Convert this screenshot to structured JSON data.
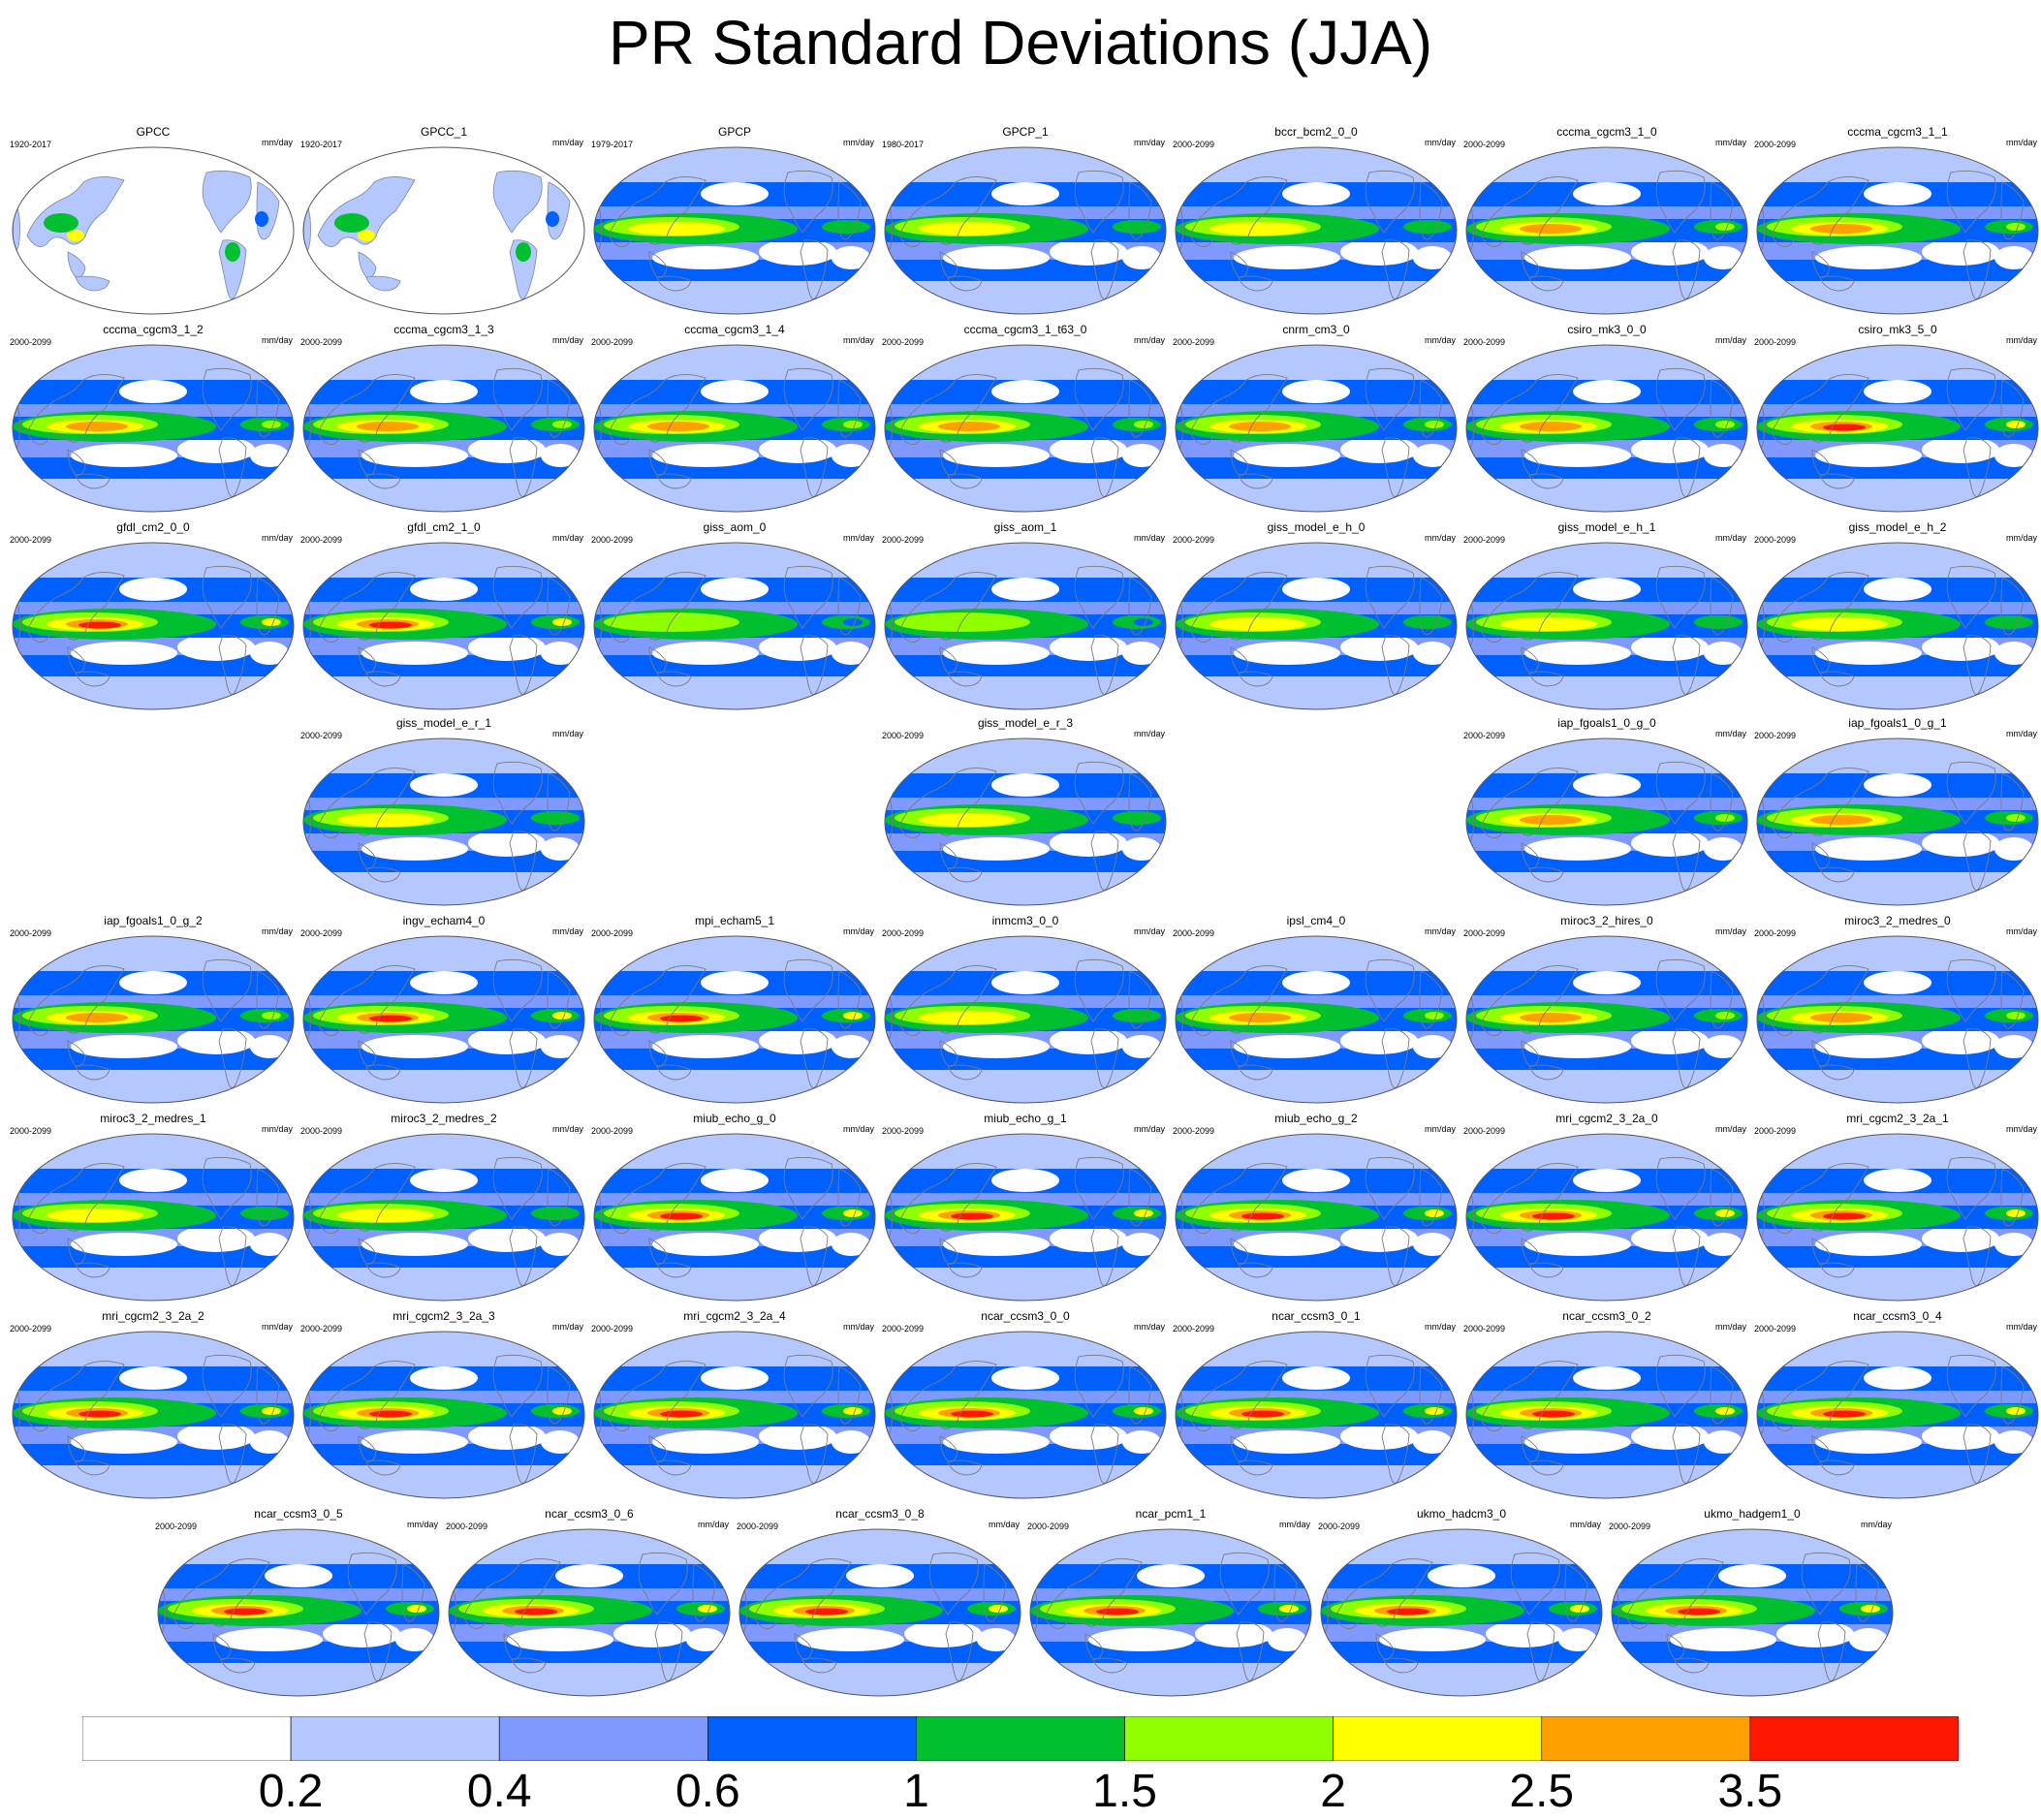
{
  "title": "PR Standard Deviations (JJA)",
  "units": "mm/day",
  "colorbar": {
    "labels": [
      "0.2",
      "0.4",
      "0.6",
      "1",
      "1.5",
      "2",
      "2.5",
      "3.5"
    ],
    "colors": [
      "#ffffff",
      "#b4c8ff",
      "#8099ff",
      "#0060ff",
      "#00c030",
      "#90ff00",
      "#ffff00",
      "#ffa000",
      "#ff1800"
    ]
  },
  "panels": [
    {
      "name": "GPCC",
      "period": "1920-2017",
      "kind": "land"
    },
    {
      "name": "GPCC_1",
      "period": "1920-2017",
      "kind": "land"
    },
    {
      "name": "GPCP",
      "period": "1979-2017",
      "kind": "obs"
    },
    {
      "name": "GPCP_1",
      "period": "1980-2017",
      "kind": "obs"
    },
    {
      "name": "bccr_bcm2_0_0",
      "period": "2000-2099",
      "kind": "model",
      "intensity": 1
    },
    {
      "name": "cccma_cgcm3_1_0",
      "period": "2000-2099",
      "kind": "model",
      "intensity": 2
    },
    {
      "name": "cccma_cgcm3_1_1",
      "period": "2000-2099",
      "kind": "model",
      "intensity": 2
    },
    {
      "name": "cccma_cgcm3_1_2",
      "period": "2000-2099",
      "kind": "model",
      "intensity": 2
    },
    {
      "name": "cccma_cgcm3_1_3",
      "period": "2000-2099",
      "kind": "model",
      "intensity": 2
    },
    {
      "name": "cccma_cgcm3_1_4",
      "period": "2000-2099",
      "kind": "model",
      "intensity": 2
    },
    {
      "name": "cccma_cgcm3_1_t63_0",
      "period": "2000-2099",
      "kind": "model",
      "intensity": 2
    },
    {
      "name": "cnrm_cm3_0",
      "period": "2000-2099",
      "kind": "model",
      "intensity": 2
    },
    {
      "name": "csiro_mk3_0_0",
      "period": "2000-2099",
      "kind": "model",
      "intensity": 2
    },
    {
      "name": "csiro_mk3_5_0",
      "period": "2000-2099",
      "kind": "model",
      "intensity": 3
    },
    {
      "name": "gfdl_cm2_0_0",
      "period": "2000-2099",
      "kind": "model",
      "intensity": 3
    },
    {
      "name": "gfdl_cm2_1_0",
      "period": "2000-2099",
      "kind": "model",
      "intensity": 3
    },
    {
      "name": "giss_aom_0",
      "period": "2000-2099",
      "kind": "model",
      "intensity": 0
    },
    {
      "name": "giss_aom_1",
      "period": "2000-2099",
      "kind": "model",
      "intensity": 0
    },
    {
      "name": "giss_model_e_h_0",
      "period": "2000-2099",
      "kind": "model",
      "intensity": 1
    },
    {
      "name": "giss_model_e_h_1",
      "period": "2000-2099",
      "kind": "model",
      "intensity": 1
    },
    {
      "name": "giss_model_e_h_2",
      "period": "2000-2099",
      "kind": "model",
      "intensity": 1
    },
    {
      "name": "giss_model_e_r_1",
      "period": "2000-2099",
      "kind": "model",
      "intensity": 1
    },
    {
      "name": "giss_model_e_r_3",
      "period": "2000-2099",
      "kind": "model",
      "intensity": 1
    },
    {
      "name": "iap_fgoals1_0_g_0",
      "period": "2000-2099",
      "kind": "model",
      "intensity": 2
    },
    {
      "name": "iap_fgoals1_0_g_1",
      "period": "2000-2099",
      "kind": "model",
      "intensity": 2
    },
    {
      "name": "iap_fgoals1_0_g_2",
      "period": "2000-2099",
      "kind": "model",
      "intensity": 2
    },
    {
      "name": "ingv_echam4_0",
      "period": "2000-2099",
      "kind": "model",
      "intensity": 3
    },
    {
      "name": "mpi_echam5_1",
      "period": "2000-2099",
      "kind": "model",
      "intensity": 3
    },
    {
      "name": "inmcm3_0_0",
      "period": "2000-2099",
      "kind": "model",
      "intensity": 1
    },
    {
      "name": "ipsl_cm4_0",
      "period": "2000-2099",
      "kind": "model",
      "intensity": 2
    },
    {
      "name": "miroc3_2_hires_0",
      "period": "2000-2099",
      "kind": "model",
      "intensity": 2
    },
    {
      "name": "miroc3_2_medres_0",
      "period": "2000-2099",
      "kind": "model",
      "intensity": 2
    },
    {
      "name": "miroc3_2_medres_1",
      "period": "2000-2099",
      "kind": "model",
      "intensity": 1
    },
    {
      "name": "miroc3_2_medres_2",
      "period": "2000-2099",
      "kind": "model",
      "intensity": 1
    },
    {
      "name": "miub_echo_g_0",
      "period": "2000-2099",
      "kind": "model",
      "intensity": 3
    },
    {
      "name": "miub_echo_g_1",
      "period": "2000-2099",
      "kind": "model",
      "intensity": 3
    },
    {
      "name": "miub_echo_g_2",
      "period": "2000-2099",
      "kind": "model",
      "intensity": 3
    },
    {
      "name": "mri_cgcm2_3_2a_0",
      "period": "2000-2099",
      "kind": "model",
      "intensity": 3
    },
    {
      "name": "mri_cgcm2_3_2a_1",
      "period": "2000-2099",
      "kind": "model",
      "intensity": 3
    },
    {
      "name": "mri_cgcm2_3_2a_2",
      "period": "2000-2099",
      "kind": "model",
      "intensity": 3
    },
    {
      "name": "mri_cgcm2_3_2a_3",
      "period": "2000-2099",
      "kind": "model",
      "intensity": 3
    },
    {
      "name": "mri_cgcm2_3_2a_4",
      "period": "2000-2099",
      "kind": "model",
      "intensity": 3
    },
    {
      "name": "ncar_ccsm3_0_0",
      "period": "2000-2099",
      "kind": "model",
      "intensity": 3
    },
    {
      "name": "ncar_ccsm3_0_1",
      "period": "2000-2099",
      "kind": "model",
      "intensity": 3
    },
    {
      "name": "ncar_ccsm3_0_2",
      "period": "2000-2099",
      "kind": "model",
      "intensity": 3
    },
    {
      "name": "ncar_ccsm3_0_4",
      "period": "2000-2099",
      "kind": "model",
      "intensity": 3
    },
    {
      "name": "ncar_ccsm3_0_5",
      "period": "2000-2099",
      "kind": "model",
      "intensity": 3
    },
    {
      "name": "ncar_ccsm3_0_6",
      "period": "2000-2099",
      "kind": "model",
      "intensity": 3
    },
    {
      "name": "ncar_ccsm3_0_8",
      "period": "2000-2099",
      "kind": "model",
      "intensity": 3
    },
    {
      "name": "ncar_pcm1_1",
      "period": "2000-2099",
      "kind": "model",
      "intensity": 3
    },
    {
      "name": "ukmo_hadcm3_0",
      "period": "2000-2099",
      "kind": "model",
      "intensity": 3
    },
    {
      "name": "ukmo_hadgem1_0",
      "period": "2000-2099",
      "kind": "model",
      "intensity": 3
    }
  ]
}
